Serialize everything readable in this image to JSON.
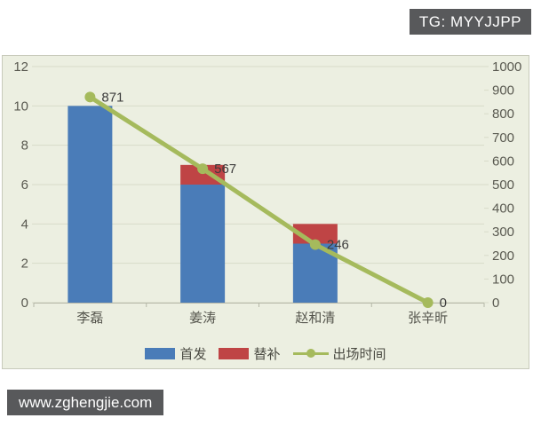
{
  "overlays": {
    "tg_badge": "TG: MYYJJPP",
    "watermark": "www.zghengjie.com"
  },
  "colors": {
    "badge_bg": "#58595b",
    "badge_text": "#ffffff",
    "plot_bg": "#ecefe1",
    "gridline": "#d8dbc9",
    "axis_line": "#b5b7a7",
    "axis_text": "#595950",
    "category_text": "#55554d",
    "data_label_text": "#3c3c3c",
    "bar_blue": "#4a7cb8",
    "bar_red": "#bf4445",
    "line_green": "#a5ba5c"
  },
  "chart_data": {
    "type": "combo",
    "title": "",
    "categories": [
      "李磊",
      "姜涛",
      "赵和清",
      "张辛昕"
    ],
    "series": [
      {
        "name": "首发",
        "type": "bar",
        "axis": "left",
        "color": "#4a7cb8",
        "values": [
          10,
          6,
          3,
          0
        ]
      },
      {
        "name": "替补",
        "type": "bar",
        "axis": "left",
        "color": "#bf4445",
        "values": [
          0,
          1,
          1,
          0
        ],
        "stacked": true
      },
      {
        "name": "出场时间",
        "type": "line",
        "axis": "right",
        "color": "#a5ba5c",
        "values": [
          871,
          567,
          246,
          0
        ],
        "data_labels": [
          "871",
          "567",
          "246",
          "0"
        ]
      }
    ],
    "left_axis": {
      "min": 0,
      "max": 12,
      "ticks": [
        0,
        2,
        4,
        6,
        8,
        10,
        12
      ]
    },
    "right_axis": {
      "min": 0,
      "max": 1000,
      "ticks": [
        0,
        100,
        200,
        300,
        400,
        500,
        600,
        700,
        800,
        900,
        1000
      ]
    },
    "grid": true,
    "legend_position": "bottom"
  }
}
